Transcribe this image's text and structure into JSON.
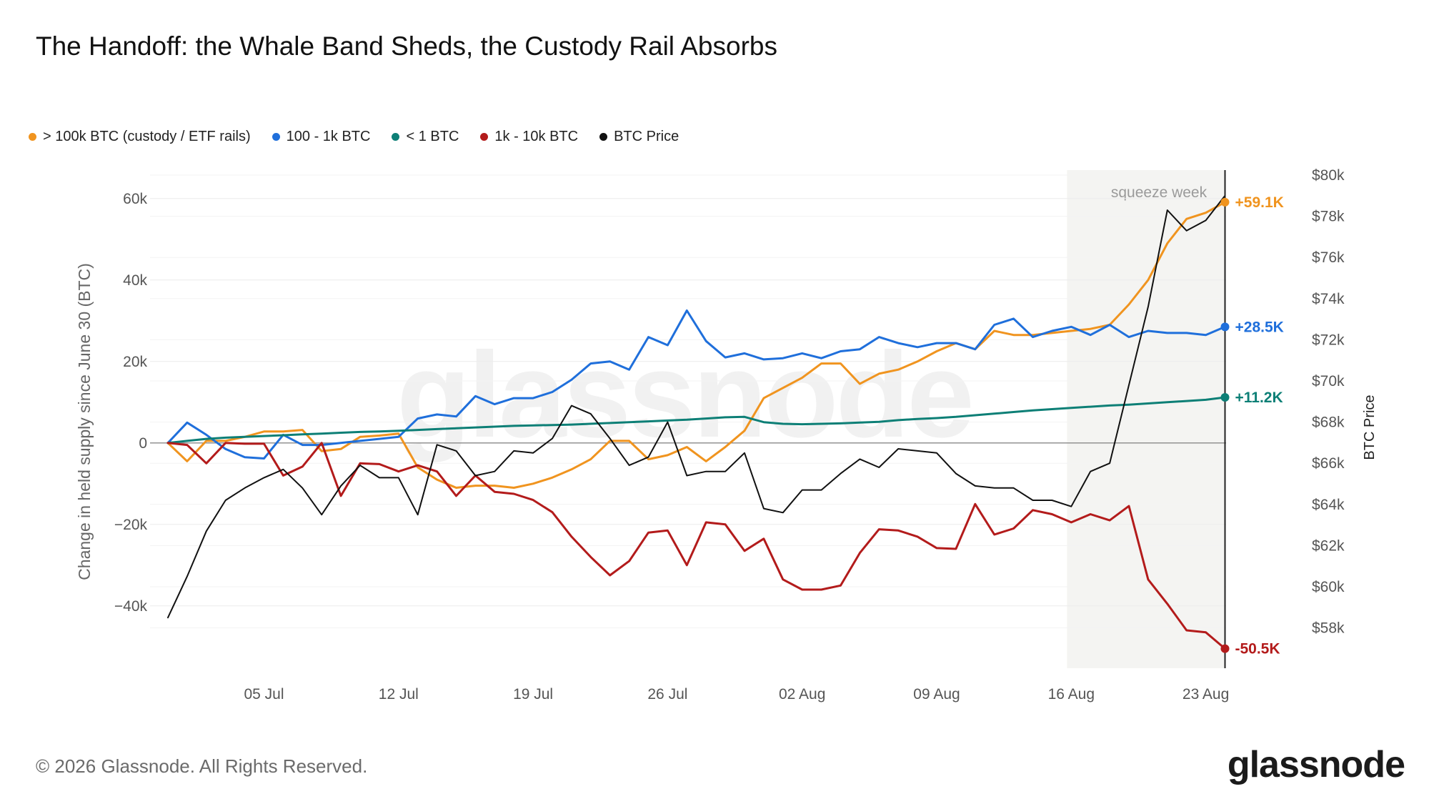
{
  "title": "The Handoff: the Whale Band Sheds, the Custody Rail Absorbs",
  "footer": "© 2026 Glassnode. All Rights Reserved.",
  "brand": "glassnode",
  "watermark": "glassnode",
  "legend": [
    {
      "label": "> 100k BTC (custody / ETF rails)",
      "color": "#f0941f"
    },
    {
      "label": "100 - 1k BTC",
      "color": "#1f6fdb"
    },
    {
      "label": "< 1 BTC",
      "color": "#0d7f76"
    },
    {
      "label": "1k - 10k BTC",
      "color": "#b31b1b"
    },
    {
      "label": "BTC Price",
      "color": "#111111"
    }
  ],
  "chart_data": {
    "type": "line",
    "ylabel": "Change in held supply since June 30 (BTC)",
    "y2label": "BTC Price",
    "ylim": [
      -55000,
      65000
    ],
    "y2lim": [
      57500,
      80000
    ],
    "yticks": [
      {
        "v": 60000,
        "label": "60k"
      },
      {
        "v": 40000,
        "label": "40k"
      },
      {
        "v": 20000,
        "label": "20k"
      },
      {
        "v": 0,
        "label": "0"
      },
      {
        "v": -20000,
        "label": "−20k"
      },
      {
        "v": -40000,
        "label": "−40k"
      }
    ],
    "y2ticks": [
      {
        "v": 80000,
        "label": "$80k"
      },
      {
        "v": 78000,
        "label": "$78k"
      },
      {
        "v": 76000,
        "label": "$76k"
      },
      {
        "v": 74000,
        "label": "$74k"
      },
      {
        "v": 72000,
        "label": "$72k"
      },
      {
        "v": 70000,
        "label": "$70k"
      },
      {
        "v": 68000,
        "label": "$68k"
      },
      {
        "v": 66000,
        "label": "$66k"
      },
      {
        "v": 64000,
        "label": "$64k"
      },
      {
        "v": 62000,
        "label": "$62k"
      },
      {
        "v": 60000,
        "label": "$60k"
      },
      {
        "v": 58000,
        "label": "$58k"
      }
    ],
    "xticks": [
      {
        "i": 5,
        "label": "05 Jul"
      },
      {
        "i": 12,
        "label": "12 Jul"
      },
      {
        "i": 19,
        "label": "19 Jul"
      },
      {
        "i": 26,
        "label": "26 Jul"
      },
      {
        "i": 33,
        "label": "02 Aug"
      },
      {
        "i": 40,
        "label": "09 Aug"
      },
      {
        "i": 47,
        "label": "16 Aug"
      },
      {
        "i": 54,
        "label": "23 Aug"
      }
    ],
    "x_start": "2026-06-30",
    "x_end": "2026-08-24",
    "shaded_region": {
      "from_index": 47,
      "to_index": 55,
      "label": "squeeze week"
    },
    "series": [
      {
        "name": "> 100k BTC (custody / ETF rails)",
        "axis": "left",
        "color": "#f0941f",
        "end_label": "+59.1K",
        "values": [
          0,
          -4500,
          500,
          500,
          1500,
          2800,
          2800,
          3200,
          -2000,
          -1500,
          1500,
          1800,
          2300,
          -6000,
          -9000,
          -11000,
          -10500,
          -10500,
          -11000,
          -10000,
          -8500,
          -6500,
          -4000,
          500,
          500,
          -4000,
          -3000,
          -1000,
          -4500,
          -1000,
          3000,
          11000,
          13500,
          16000,
          19500,
          19500,
          14500,
          17000,
          18000,
          20000,
          22500,
          24500,
          23000,
          27500,
          26500,
          26500,
          27000,
          27500,
          28000,
          29000,
          34000,
          40000,
          49000,
          55000,
          56500,
          59100
        ]
      },
      {
        "name": "100 - 1k BTC",
        "axis": "left",
        "color": "#1f6fdb",
        "end_label": "+28.5K",
        "values": [
          0,
          5000,
          2000,
          -1500,
          -3500,
          -3800,
          2000,
          -500,
          -500,
          0,
          500,
          1000,
          1500,
          6000,
          7000,
          6500,
          11500,
          9500,
          11000,
          11000,
          12500,
          15500,
          19500,
          20000,
          18000,
          26000,
          24000,
          32500,
          25000,
          21000,
          22000,
          20500,
          20800,
          22000,
          20800,
          22500,
          23000,
          26000,
          24500,
          23500,
          24500,
          24500,
          23000,
          29000,
          30500,
          26000,
          27500,
          28500,
          26500,
          29000,
          26000,
          27500,
          27000,
          27000,
          26500,
          28500
        ]
      },
      {
        "name": "< 1 BTC",
        "axis": "left",
        "color": "#0d7f76",
        "end_label": "+11.2K",
        "values": [
          0,
          500,
          1000,
          1300,
          1500,
          1700,
          1900,
          2100,
          2300,
          2500,
          2700,
          2800,
          3000,
          3200,
          3400,
          3600,
          3800,
          4000,
          4200,
          4300,
          4400,
          4500,
          4700,
          4900,
          5100,
          5300,
          5500,
          5700,
          6000,
          6300,
          6400,
          5100,
          4700,
          4600,
          4700,
          4800,
          5000,
          5200,
          5600,
          5900,
          6100,
          6400,
          6800,
          7200,
          7600,
          8000,
          8300,
          8600,
          8900,
          9200,
          9400,
          9700,
          10000,
          10300,
          10600,
          11200
        ]
      },
      {
        "name": "1k - 10k BTC",
        "axis": "left",
        "color": "#b31b1b",
        "end_label": "-50.5K",
        "values": [
          0,
          -500,
          -5000,
          0,
          -200,
          -200,
          -8000,
          -5800,
          0,
          -13000,
          -5000,
          -5200,
          -7000,
          -5500,
          -7000,
          -13000,
          -8000,
          -12000,
          -12500,
          -14000,
          -17000,
          -23000,
          -28000,
          -32500,
          -29000,
          -22000,
          -21500,
          -30000,
          -19500,
          -20000,
          -26500,
          -23500,
          -33500,
          -36000,
          -36000,
          -35000,
          -27000,
          -21200,
          -21500,
          -23000,
          -25800,
          -26000,
          -15000,
          -22500,
          -21000,
          -16500,
          -17500,
          -19500,
          -17500,
          -19000,
          -15500,
          -33500,
          -39500,
          -46000,
          -46500,
          -50500
        ]
      },
      {
        "name": "BTC Price",
        "axis": "right",
        "color": "#111111",
        "end_label": "",
        "values": [
          58500,
          60500,
          62700,
          64200,
          64800,
          65300,
          65700,
          64800,
          63500,
          64900,
          65900,
          65300,
          65300,
          63500,
          66900,
          66600,
          65400,
          65600,
          66600,
          66500,
          67200,
          68800,
          68400,
          67200,
          65900,
          66300,
          68000,
          65400,
          65600,
          65600,
          66500,
          63800,
          63600,
          64700,
          64700,
          65500,
          66200,
          65800,
          66700,
          66600,
          66500,
          65500,
          64900,
          64800,
          64800,
          64200,
          64200,
          63900,
          65600,
          66000,
          69800,
          73600,
          78300,
          77300,
          77800,
          79000
        ]
      }
    ]
  }
}
